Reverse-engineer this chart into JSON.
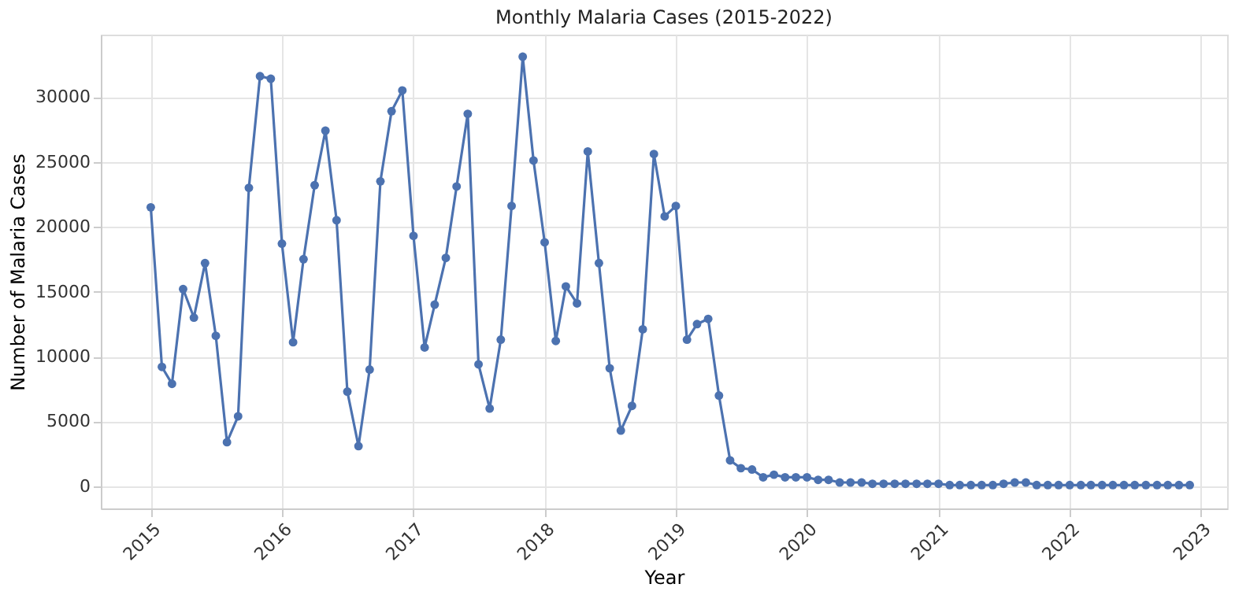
{
  "chart_data": {
    "type": "line",
    "title": "Monthly Malaria Cases (2015-2022)",
    "xlabel": "Year",
    "ylabel": "Number of Malaria Cases",
    "x": [
      "2015-01",
      "2015-02",
      "2015-03",
      "2015-04",
      "2015-05",
      "2015-06",
      "2015-07",
      "2015-08",
      "2015-09",
      "2015-10",
      "2015-11",
      "2015-12",
      "2016-01",
      "2016-02",
      "2016-03",
      "2016-04",
      "2016-05",
      "2016-06",
      "2016-07",
      "2016-08",
      "2016-09",
      "2016-10",
      "2016-11",
      "2016-12",
      "2017-01",
      "2017-02",
      "2017-03",
      "2017-04",
      "2017-05",
      "2017-06",
      "2017-07",
      "2017-08",
      "2017-09",
      "2017-10",
      "2017-11",
      "2017-12",
      "2018-01",
      "2018-02",
      "2018-03",
      "2018-04",
      "2018-05",
      "2018-06",
      "2018-07",
      "2018-08",
      "2018-09",
      "2018-10",
      "2018-11",
      "2018-12",
      "2019-01",
      "2019-02",
      "2019-03",
      "2019-04",
      "2019-05",
      "2019-06",
      "2019-07",
      "2019-08",
      "2019-09",
      "2019-10",
      "2019-11",
      "2019-12",
      "2020-01",
      "2020-02",
      "2020-03",
      "2020-04",
      "2020-05",
      "2020-06",
      "2020-07",
      "2020-08",
      "2020-09",
      "2020-10",
      "2020-11",
      "2020-12",
      "2021-01",
      "2021-02",
      "2021-03",
      "2021-04",
      "2021-05",
      "2021-06",
      "2021-07",
      "2021-08",
      "2021-09",
      "2021-10",
      "2021-11",
      "2021-12",
      "2022-01",
      "2022-02",
      "2022-03",
      "2022-04",
      "2022-05",
      "2022-06",
      "2022-07",
      "2022-08",
      "2022-09",
      "2022-10",
      "2022-11",
      "2022-12"
    ],
    "series": [
      {
        "color": "#4c72b0",
        "values": [
          21500,
          9200,
          7900,
          15200,
          13000,
          17200,
          11600,
          3400,
          5400,
          23000,
          31600,
          31400,
          18700,
          11100,
          17500,
          23200,
          27400,
          20500,
          7300,
          3100,
          9000,
          23500,
          28900,
          30500,
          19300,
          10700,
          14000,
          17600,
          23100,
          28700,
          9400,
          6000,
          11300,
          21600,
          33100,
          25100,
          18800,
          11200,
          15400,
          14100,
          25800,
          17200,
          9100,
          4300,
          6200,
          12100,
          25600,
          20800,
          21600,
          11300,
          12500,
          12900,
          7000,
          2000,
          1400,
          1300,
          700,
          900,
          700,
          700,
          700,
          500,
          500,
          300,
          300,
          300,
          200,
          200,
          200,
          200,
          200,
          200,
          200,
          100,
          100,
          100,
          100,
          100,
          200,
          300,
          300,
          100,
          100,
          100,
          100,
          100,
          100,
          100,
          100,
          100,
          100,
          100,
          100,
          100,
          100,
          100
        ]
      }
    ],
    "xlim": [
      "2014-08-15",
      "2023-03-15"
    ],
    "xticks": [
      "2015",
      "2016",
      "2017",
      "2018",
      "2019",
      "2020",
      "2021",
      "2022",
      "2023"
    ],
    "ylim": [
      -1700,
      34800
    ],
    "yticks": [
      0,
      5000,
      10000,
      15000,
      20000,
      25000,
      30000
    ],
    "grid": true,
    "marker": "circle",
    "line_style": "solid"
  }
}
